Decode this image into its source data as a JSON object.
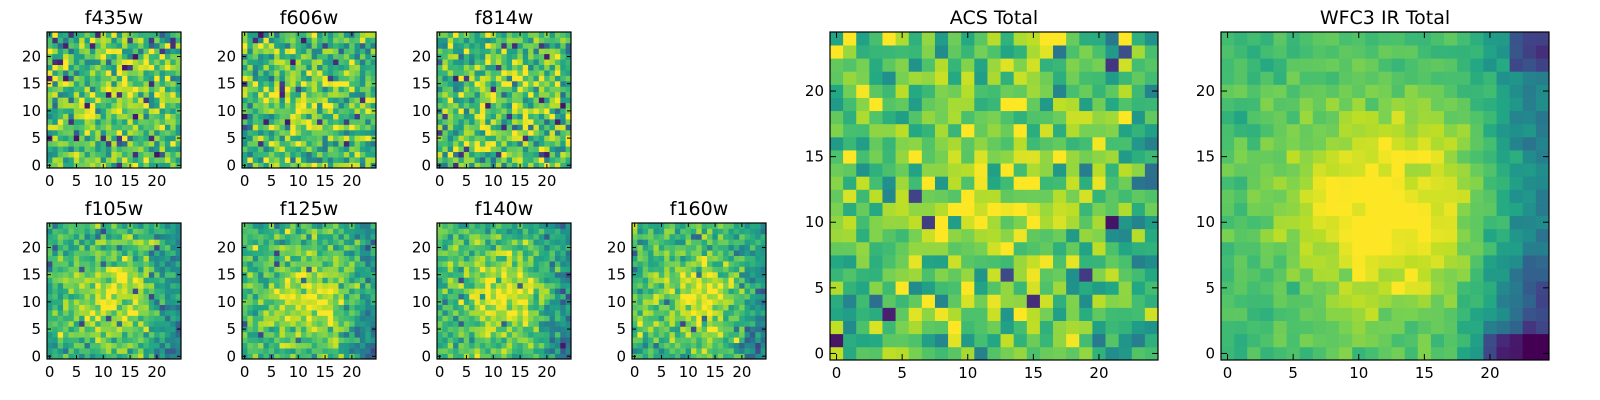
{
  "chart_data": [
    {
      "type": "heatmap",
      "title": "f435w",
      "xlim": [
        -0.5,
        24.5
      ],
      "ylim": [
        -0.5,
        24.5
      ],
      "xticks": [
        0,
        5,
        10,
        15,
        20
      ],
      "yticks": [
        0,
        5,
        10,
        15,
        20
      ],
      "colormap": "viridis",
      "grid_size": [
        25,
        25
      ],
      "texture": "noisy"
    },
    {
      "type": "heatmap",
      "title": "f606w",
      "xlim": [
        -0.5,
        24.5
      ],
      "ylim": [
        -0.5,
        24.5
      ],
      "xticks": [
        0,
        5,
        10,
        15,
        20
      ],
      "yticks": [
        0,
        5,
        10,
        15,
        20
      ],
      "colormap": "viridis",
      "grid_size": [
        25,
        25
      ],
      "texture": "noisy"
    },
    {
      "type": "heatmap",
      "title": "f814w",
      "xlim": [
        -0.5,
        24.5
      ],
      "ylim": [
        -0.5,
        24.5
      ],
      "xticks": [
        0,
        5,
        10,
        15,
        20
      ],
      "yticks": [
        0,
        5,
        10,
        15,
        20
      ],
      "colormap": "viridis",
      "grid_size": [
        25,
        25
      ],
      "texture": "noisy"
    },
    {
      "type": "heatmap",
      "title": "f105w",
      "xlim": [
        -0.5,
        24.5
      ],
      "ylim": [
        -0.5,
        24.5
      ],
      "xticks": [
        0,
        5,
        10,
        15,
        20
      ],
      "yticks": [
        0,
        5,
        10,
        15,
        20
      ],
      "colormap": "viridis",
      "grid_size": [
        25,
        25
      ],
      "texture": "source-centered"
    },
    {
      "type": "heatmap",
      "title": "f125w",
      "xlim": [
        -0.5,
        24.5
      ],
      "ylim": [
        -0.5,
        24.5
      ],
      "xticks": [
        0,
        5,
        10,
        15,
        20
      ],
      "yticks": [
        0,
        5,
        10,
        15,
        20
      ],
      "colormap": "viridis",
      "grid_size": [
        25,
        25
      ],
      "texture": "source-centered"
    },
    {
      "type": "heatmap",
      "title": "f140w",
      "xlim": [
        -0.5,
        24.5
      ],
      "ylim": [
        -0.5,
        24.5
      ],
      "xticks": [
        0,
        5,
        10,
        15,
        20
      ],
      "yticks": [
        0,
        5,
        10,
        15,
        20
      ],
      "colormap": "viridis",
      "grid_size": [
        25,
        25
      ],
      "texture": "source-centered"
    },
    {
      "type": "heatmap",
      "title": "f160w",
      "xlim": [
        -0.5,
        24.5
      ],
      "ylim": [
        -0.5,
        24.5
      ],
      "xticks": [
        0,
        5,
        10,
        15,
        20
      ],
      "yticks": [
        0,
        5,
        10,
        15,
        20
      ],
      "colormap": "viridis",
      "grid_size": [
        25,
        25
      ],
      "texture": "source-centered"
    },
    {
      "type": "heatmap",
      "title": "ACS Total",
      "xlim": [
        -0.5,
        24.5
      ],
      "ylim": [
        -0.5,
        24.5
      ],
      "xticks": [
        0,
        5,
        10,
        15,
        20
      ],
      "yticks": [
        0,
        5,
        10,
        15,
        20
      ],
      "colormap": "viridis",
      "grid_size": [
        25,
        25
      ],
      "texture": "noisy-bright"
    },
    {
      "type": "heatmap",
      "title": "WFC3 IR Total",
      "xlim": [
        -0.5,
        24.5
      ],
      "ylim": [
        -0.5,
        24.5
      ],
      "xticks": [
        0,
        5,
        10,
        15,
        20
      ],
      "yticks": [
        0,
        5,
        10,
        15,
        20
      ],
      "colormap": "viridis",
      "grid_size": [
        25,
        25
      ],
      "texture": "smooth-source"
    }
  ]
}
